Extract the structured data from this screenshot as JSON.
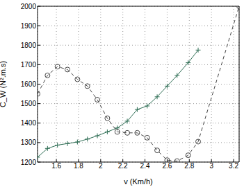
{
  "chart_data": {
    "type": "line",
    "x_label": "v (Km/h)",
    "y_label": "C_W (N².m.s)",
    "xlim": [
      1.43,
      3.25
    ],
    "xticks": [
      1.6,
      1.8,
      2,
      2.2,
      2.4,
      2.6,
      2.8,
      3,
      3.2
    ],
    "ylim": [
      1200,
      2000
    ],
    "yticks": [
      1200,
      1300,
      1400,
      1500,
      1600,
      1700,
      1800,
      1900,
      2000
    ],
    "grid": true,
    "x": [
      1.43,
      1.52,
      1.61,
      1.7,
      1.79,
      1.88,
      1.97,
      2.06,
      2.15,
      2.24,
      2.33,
      2.42,
      2.51,
      2.6,
      2.69,
      2.79,
      2.88,
      3.25
    ],
    "series": [
      {
        "color": "#2f6e55",
        "line_style": "solid",
        "marker": "plus",
        "values": [
          1225,
          1270,
          1287,
          1295,
          1303,
          1318,
          1335,
          1355,
          1375,
          1410,
          1470,
          1488,
          1535,
          1590,
          1645,
          1710,
          1775,
          null
        ]
      },
      {
        "color": "#444444",
        "line_style": "dashed",
        "marker": "circle",
        "values": [
          1550,
          1645,
          1690,
          1675,
          1625,
          1590,
          1520,
          1425,
          1355,
          1350,
          1350,
          1325,
          1260,
          1210,
          1205,
          1235,
          1305,
          2000
        ]
      }
    ]
  }
}
